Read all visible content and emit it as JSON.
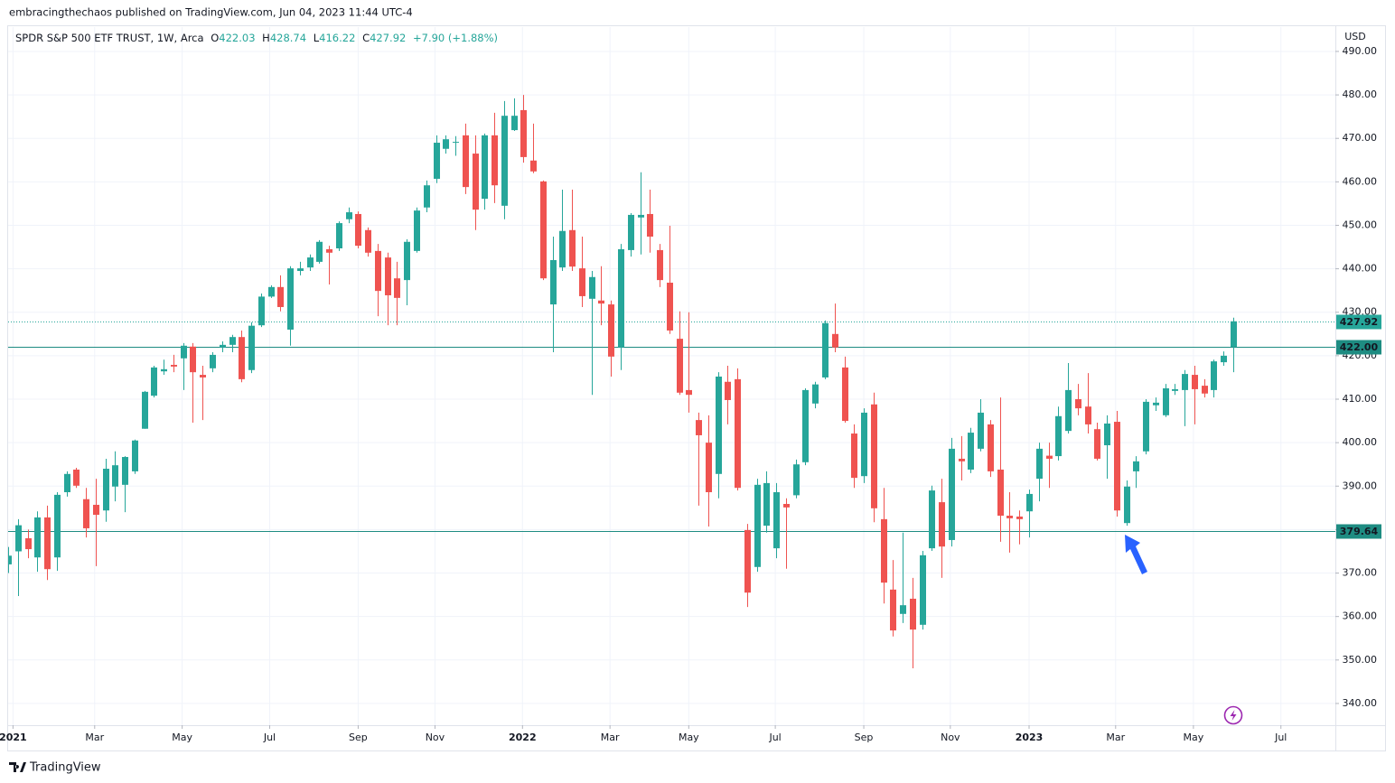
{
  "header": {
    "published": "embracingthechaos published on TradingView.com, Jun 04, 2023 11:44 UTC-4"
  },
  "footer": {
    "brand": "TradingView"
  },
  "chart_data": {
    "type": "candlestick",
    "title": "SPDR S&P 500 ETF TRUST, 1W, Arca",
    "ohlc_legend": [
      {
        "label": "O",
        "value": "422.03"
      },
      {
        "label": "H",
        "value": "428.74"
      },
      {
        "label": "L",
        "value": "416.22"
      },
      {
        "label": "C",
        "value": "427.92"
      }
    ],
    "change": "+7.90 (+1.88%)",
    "y_axis_label": "USD",
    "up_color": "#26a69a",
    "down_color": "#ef5350",
    "grid": true,
    "xlim": [
      0,
      136.5
    ],
    "ylim": [
      335,
      495.6
    ],
    "xticks": [
      {
        "value": 0.5,
        "label": "2021"
      },
      {
        "value": 8.9,
        "label": "Mar"
      },
      {
        "value": 17.9,
        "label": "May"
      },
      {
        "value": 26.9,
        "label": "Jul"
      },
      {
        "value": 36.0,
        "label": "Sep"
      },
      {
        "value": 43.9,
        "label": "Nov"
      },
      {
        "value": 52.9,
        "label": "2022"
      },
      {
        "value": 61.9,
        "label": "Mar"
      },
      {
        "value": 70.0,
        "label": "May"
      },
      {
        "value": 78.9,
        "label": "Jul"
      },
      {
        "value": 88.0,
        "label": "Sep"
      },
      {
        "value": 96.9,
        "label": "Nov"
      },
      {
        "value": 105.0,
        "label": "2023"
      },
      {
        "value": 113.9,
        "label": "Mar"
      },
      {
        "value": 121.9,
        "label": "May"
      },
      {
        "value": 130.9,
        "label": "Jul"
      }
    ],
    "yticks": [
      {
        "value": 340,
        "label": "340.00"
      },
      {
        "value": 350,
        "label": "350.00"
      },
      {
        "value": 360,
        "label": "360.00"
      },
      {
        "value": 370,
        "label": "370.00"
      },
      {
        "value": 380,
        "label": "380.00"
      },
      {
        "value": 390,
        "label": "390.00"
      },
      {
        "value": 400,
        "label": "400.00"
      },
      {
        "value": 410,
        "label": "410.00"
      },
      {
        "value": 420,
        "label": "420.00"
      },
      {
        "value": 430,
        "label": "430.00"
      },
      {
        "value": 440,
        "label": "440.00"
      },
      {
        "value": 450,
        "label": "450.00"
      },
      {
        "value": 460,
        "label": "460.00"
      },
      {
        "value": 470,
        "label": "470.00"
      },
      {
        "value": 480,
        "label": "480.00"
      },
      {
        "value": 490,
        "label": "490.00"
      }
    ],
    "hlines": [
      {
        "value": 427.92,
        "label": "427.92",
        "color": "#26a69a",
        "style": "dotted"
      },
      {
        "value": 422.0,
        "label": "422.00",
        "color": "#1e8c82",
        "style": "solid"
      },
      {
        "value": 379.64,
        "label": "379.64",
        "color": "#1e8c82",
        "style": "solid"
      }
    ],
    "x": [
      0,
      1,
      2,
      3,
      4,
      5,
      6,
      7,
      8,
      9,
      10,
      11,
      12,
      13,
      14,
      15,
      16,
      17,
      18,
      19,
      20,
      21,
      22,
      23,
      24,
      25,
      26,
      27,
      28,
      29,
      30,
      31,
      32,
      33,
      34,
      35,
      36,
      37,
      38,
      39,
      40,
      41,
      42,
      43,
      44,
      45,
      46,
      47,
      48,
      49,
      50,
      51,
      52,
      53,
      54,
      55,
      56,
      57,
      58,
      59,
      60,
      61,
      62,
      63,
      64,
      65,
      66,
      67,
      68,
      69,
      70,
      71,
      72,
      73,
      74,
      75,
      76,
      77,
      78,
      79,
      80,
      81,
      82,
      83,
      84,
      85,
      86,
      87,
      88,
      89,
      90,
      91,
      92,
      93,
      94,
      95,
      96,
      97,
      98,
      99,
      100,
      101,
      102,
      103,
      104,
      105,
      106,
      107,
      108,
      109,
      110,
      111,
      112,
      113,
      114,
      115,
      116,
      117,
      118,
      119,
      120,
      121,
      122,
      123,
      124,
      125,
      126
    ],
    "open": [
      372,
      375,
      378,
      373.6,
      382.8,
      373.6,
      388.6,
      393.8,
      387,
      385.7,
      384.4,
      389.9,
      390.3,
      393.4,
      403.2,
      410.8,
      416.4,
      417.9,
      419.4,
      422.1,
      415.6,
      417.1,
      421.9,
      422.5,
      424.3,
      416.7,
      427.0,
      433.6,
      435.8,
      426.0,
      439.5,
      440.3,
      441.6,
      444.5,
      444.7,
      451.4,
      452.6,
      448.9,
      444.1,
      442.6,
      437.8,
      437.4,
      444.1,
      454.1,
      460.7,
      467.6,
      469.0,
      470.7,
      466.5,
      456.1,
      470.7,
      454.5,
      471.9,
      476.5,
      464.9,
      460.1,
      431.8,
      440.3,
      448.9,
      440.1,
      433.1,
      432.7,
      431.8,
      421.9,
      444.3,
      451.8,
      452.6,
      444.3,
      436.8,
      423.9,
      412.1,
      405.2,
      400.0,
      392.8,
      414.0,
      414.6,
      379.9,
      371.4,
      380.9,
      375.7,
      385.9,
      387.9,
      395.5,
      409.0,
      415.0,
      425.0,
      417.3,
      402.1,
      392.3,
      408.8,
      382.4,
      366.2,
      360.6,
      364.1,
      358.1,
      375.7,
      386.3,
      377.6,
      396.3,
      393.8,
      398.6,
      404.2,
      393.8,
      383.2,
      383.0,
      384.2,
      391.7,
      397.0,
      396.9,
      402.7,
      410.0,
      408.3,
      403.1,
      399.4,
      404.8,
      381.5,
      393.4,
      398.0,
      408.6,
      406.3,
      411.9,
      412.1,
      415.6,
      413.1,
      412.1,
      418.5,
      422.03
    ],
    "high": [
      376,
      382.4,
      380,
      384.2,
      385.5,
      388.6,
      393.4,
      394.2,
      389.6,
      391.7,
      396.3,
      398.0,
      396.9,
      400.7,
      411.9,
      417.7,
      419.1,
      420.2,
      422.9,
      422.9,
      417.7,
      420.8,
      423.3,
      424.8,
      425.8,
      427.7,
      434.3,
      436.2,
      438.5,
      440.6,
      441.6,
      443.3,
      446.6,
      445.3,
      450.9,
      454.1,
      453.2,
      449.5,
      445.7,
      443.7,
      441.6,
      446.8,
      454.1,
      460.3,
      470.7,
      470.7,
      470.5,
      473.4,
      470.7,
      471.1,
      475.9,
      478.6,
      479.2,
      480.0,
      473.4,
      460.3,
      447.4,
      458.2,
      458.2,
      447.4,
      439.5,
      440.6,
      432.7,
      445.7,
      452.8,
      462.2,
      458.2,
      445.7,
      449.9,
      430.2,
      430.0,
      406.9,
      406.3,
      416.2,
      417.7,
      417.1,
      381.3,
      391.7,
      393.4,
      390.7,
      387.2,
      396.1,
      412.5,
      414.0,
      428.1,
      432.0,
      419.8,
      404.2,
      407.9,
      411.5,
      389.6,
      373.0,
      379.3,
      368.9,
      375.1,
      390.1,
      391.7,
      401.1,
      401.5,
      403.4,
      410.0,
      405.2,
      410.4,
      388.6,
      384.4,
      389.2,
      400.0,
      400.0,
      408.3,
      418.3,
      413.5,
      416.0,
      404.6,
      406.3,
      407.3,
      391.3,
      396.9,
      410.0,
      410.4,
      413.5,
      413.5,
      416.7,
      417.7,
      414.6,
      419.1,
      421.0,
      428.74
    ],
    "low": [
      370,
      364.7,
      373.4,
      370.3,
      368.4,
      370.5,
      387.6,
      389.6,
      378.2,
      371.6,
      381.8,
      386.5,
      384.0,
      392.8,
      403.2,
      410.4,
      415.6,
      416.2,
      412.1,
      404.6,
      405.2,
      416.2,
      420.8,
      420.8,
      413.9,
      416.0,
      426.6,
      433.3,
      430.2,
      422.3,
      438.5,
      439.5,
      441.2,
      436.4,
      444.1,
      450.5,
      444.7,
      442.8,
      429.1,
      427.0,
      427.0,
      431.6,
      443.7,
      453.0,
      459.7,
      466.5,
      466.0,
      457.2,
      448.9,
      453.6,
      455.1,
      451.4,
      471.7,
      464.4,
      462.0,
      437.4,
      420.8,
      439.5,
      439.5,
      431.2,
      411.0,
      427.0,
      415.2,
      416.7,
      442.8,
      443.3,
      443.7,
      435.8,
      425.0,
      411.0,
      406.9,
      385.5,
      380.7,
      387.2,
      404.2,
      389.0,
      362.2,
      370.3,
      379.3,
      373.4,
      371.0,
      387.2,
      394.8,
      407.9,
      414.6,
      420.8,
      404.6,
      389.6,
      390.7,
      381.7,
      363.0,
      355.4,
      358.5,
      348.1,
      357.0,
      375.1,
      368.9,
      376.1,
      391.3,
      393.0,
      398.0,
      392.1,
      377.2,
      374.7,
      376.6,
      378.2,
      386.5,
      389.6,
      395.9,
      402.1,
      406.3,
      402.1,
      395.9,
      391.7,
      383.0,
      380.9,
      389.6,
      397.3,
      407.3,
      405.9,
      411.0,
      403.8,
      404.2,
      410.4,
      410.4,
      417.7,
      416.22
    ],
    "close": [
      374,
      381,
      375.5,
      382.8,
      370.9,
      388,
      392.8,
      390.1,
      380.3,
      383.4,
      394,
      394.8,
      396.7,
      400.5,
      411.7,
      417.3,
      416.9,
      417.5,
      422.3,
      416.2,
      415.0,
      420.2,
      422.5,
      424.3,
      414.6,
      426.9,
      433.6,
      435.8,
      431.2,
      440.1,
      440.1,
      442.6,
      446.2,
      443.7,
      450.5,
      453.0,
      445.3,
      443.7,
      434.9,
      433.9,
      433.3,
      446.2,
      453.4,
      459.2,
      469.0,
      469.8,
      469.2,
      458.8,
      453.6,
      470.7,
      459.2,
      475.2,
      475.2,
      465.7,
      462.4,
      437.8,
      442.0,
      448.7,
      440.5,
      433.7,
      438.1,
      432.0,
      419.8,
      444.5,
      452.4,
      452.4,
      447.4,
      437.4,
      425.8,
      411.5,
      411.0,
      401.7,
      388.6,
      415.2,
      409.8,
      389.6,
      365.5,
      390.3,
      390.7,
      388.6,
      385.1,
      395.0,
      412.1,
      413.4,
      427.5,
      421.9,
      405.0,
      391.9,
      406.9,
      384.9,
      367.8,
      356.8,
      362.6,
      357.0,
      374.1,
      389.0,
      376.1,
      398.6,
      395.7,
      402.3,
      406.9,
      393.4,
      383.2,
      382.6,
      382.4,
      388.2,
      398.6,
      396.3,
      406.1,
      412.1,
      407.9,
      404.2,
      396.3,
      404.4,
      384.4,
      389.9,
      395.7,
      409.4,
      409.2,
      412.5,
      412.3,
      415.8,
      412.3,
      411.3,
      418.7,
      420.0,
      427.92
    ]
  }
}
